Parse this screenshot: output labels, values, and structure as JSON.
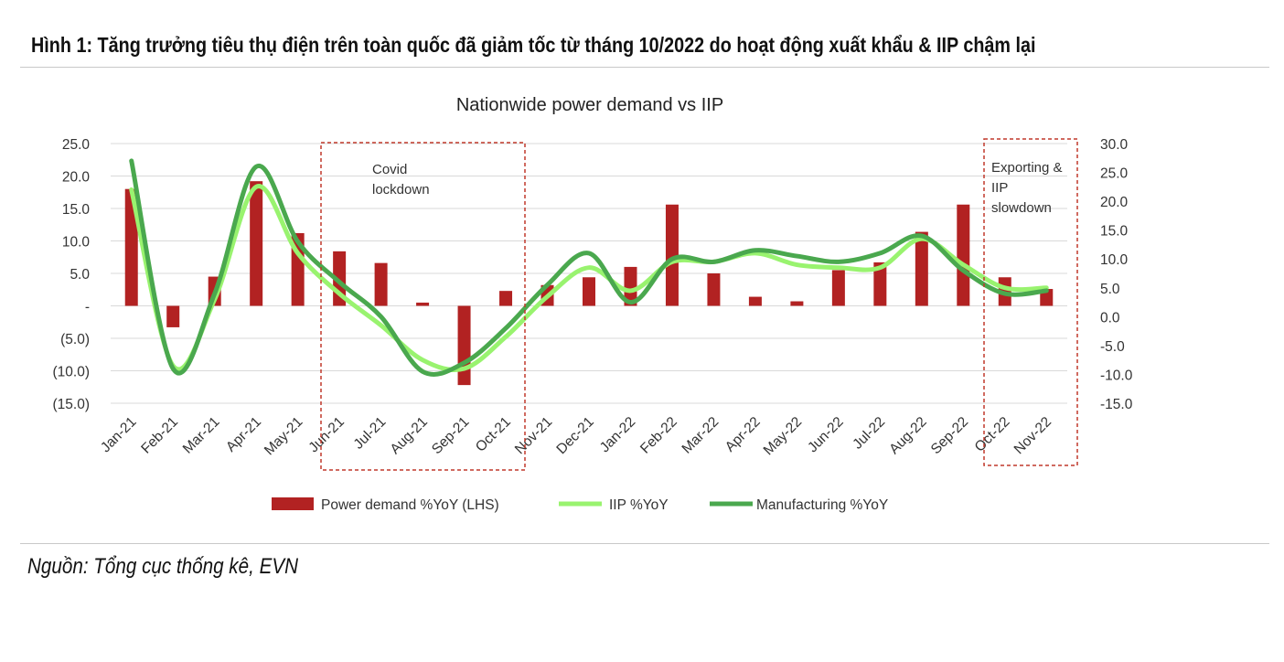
{
  "figure": {
    "title": "Hình 1: Tăng trưởng tiêu thụ điện trên toàn quốc đã giảm tốc từ tháng 10/2022 do hoạt động xuất khẩu & IIP chậm lại",
    "source": "Nguồn: Tổng cục thống kê, EVN"
  },
  "colors": {
    "bar": "#b22222",
    "iip": "#99f36f",
    "manufacturing": "#4aa84e",
    "annotation_box": "#c0392b",
    "axis_text": "#333333"
  },
  "chart_data": {
    "type": "bar",
    "title": "Nationwide power demand vs IIP",
    "categories": [
      "Jan-21",
      "Feb-21",
      "Mar-21",
      "Apr-21",
      "May-21",
      "Jun-21",
      "Jul-21",
      "Aug-21",
      "Sep-21",
      "Oct-21",
      "Nov-21",
      "Dec-21",
      "Jan-22",
      "Feb-22",
      "Mar-22",
      "Apr-22",
      "May-22",
      "Jun-22",
      "Jul-22",
      "Aug-22",
      "Sep-22",
      "Oct-22",
      "Nov-22"
    ],
    "y_left": {
      "range": [
        -15,
        25
      ],
      "ticks": [
        25,
        20,
        15,
        10,
        5,
        0,
        -5,
        -10,
        -15
      ],
      "tick_labels": [
        "25.0",
        "20.0",
        "15.0",
        "10.0",
        "5.0",
        "-",
        "(5.0)",
        "(10.0)",
        "(15.0)"
      ]
    },
    "y_right": {
      "range": [
        -15,
        30
      ],
      "ticks": [
        30,
        25,
        20,
        15,
        10,
        5,
        0,
        -5,
        -10,
        -15
      ],
      "tick_labels": [
        "30.0",
        "25.0",
        "20.0",
        "15.0",
        "10.0",
        "5.0",
        "0.0",
        "-5.0",
        "-10.0",
        "-15.0"
      ]
    },
    "grid": true,
    "legend_position": "bottom",
    "series": [
      {
        "name": "Power demand %YoY (LHS)",
        "type": "bar",
        "axis": "left",
        "values": [
          18.0,
          -3.3,
          4.5,
          19.2,
          11.2,
          8.4,
          6.6,
          0.5,
          -12.2,
          2.3,
          3.2,
          4.4,
          6.0,
          15.6,
          5.0,
          1.4,
          0.7,
          5.5,
          6.7,
          11.4,
          15.6,
          4.4,
          2.6
        ]
      },
      {
        "name": "IIP %YoY",
        "type": "line",
        "axis": "right",
        "values": [
          22.0,
          -8.5,
          3.0,
          22.5,
          11.0,
          4.0,
          -1.5,
          -7.5,
          -9.0,
          -3.5,
          3.5,
          8.5,
          4.5,
          9.5,
          9.5,
          11.0,
          9.0,
          8.5,
          8.5,
          13.5,
          9.0,
          5.0,
          5.0
        ]
      },
      {
        "name": "Manufacturing %YoY",
        "type": "line",
        "axis": "right",
        "values": [
          27.0,
          -9.0,
          4.0,
          26.0,
          13.0,
          6.0,
          0.0,
          -9.5,
          -8.0,
          -2.0,
          5.5,
          11.0,
          2.5,
          10.0,
          9.5,
          11.5,
          10.5,
          9.5,
          11.0,
          14.0,
          8.0,
          4.0,
          4.5
        ]
      }
    ],
    "annotations": [
      {
        "text_lines": [
          "Covid",
          "lockdown"
        ],
        "from": "Jun-21",
        "to": "Oct-21"
      },
      {
        "text_lines": [
          "Exporting &",
          "IIP",
          "slowdown"
        ],
        "from": "Oct-22",
        "to": "Nov-22"
      }
    ]
  }
}
